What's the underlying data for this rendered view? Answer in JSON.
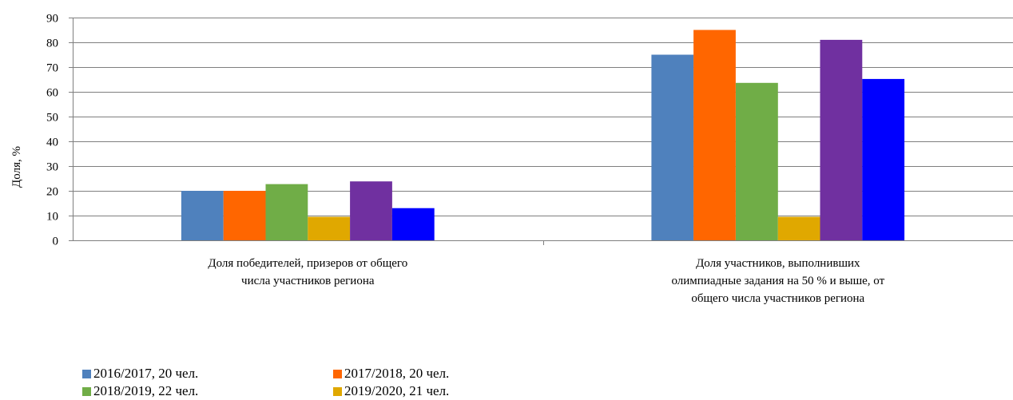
{
  "chart_data": {
    "type": "bar",
    "ylabel": "Доля, %",
    "ylim": [
      0,
      90
    ],
    "yticks": [
      0,
      10,
      20,
      30,
      40,
      50,
      60,
      70,
      80,
      90
    ],
    "grid": true,
    "legend_position": "bottom-left",
    "categories": [
      [
        "Доля победителей, призеров от общего",
        "числа участников региона"
      ],
      [
        "Доля участников, выполнивших",
        "олимпиадные задания на 50 % и выше, от",
        "общего числа участников региона"
      ]
    ],
    "series": [
      {
        "name": "2016/2017, 20 чел.",
        "color": "#4f81bd",
        "values": [
          20,
          75
        ]
      },
      {
        "name": "2017/2018, 20 чел.",
        "color": "#ff6600",
        "values": [
          20,
          85
        ]
      },
      {
        "name": "2018/2019, 22 чел.",
        "color": "#70ad47",
        "values": [
          22.7,
          63.6
        ]
      },
      {
        "name": "2019/2020, 21 чел.",
        "color": "#e0a800",
        "values": [
          9.5,
          9.5
        ]
      },
      {
        "color": "#7030a0",
        "values": [
          23.8,
          81
        ]
      },
      {
        "color": "#0000ff",
        "values": [
          13,
          65.2
        ]
      }
    ]
  }
}
